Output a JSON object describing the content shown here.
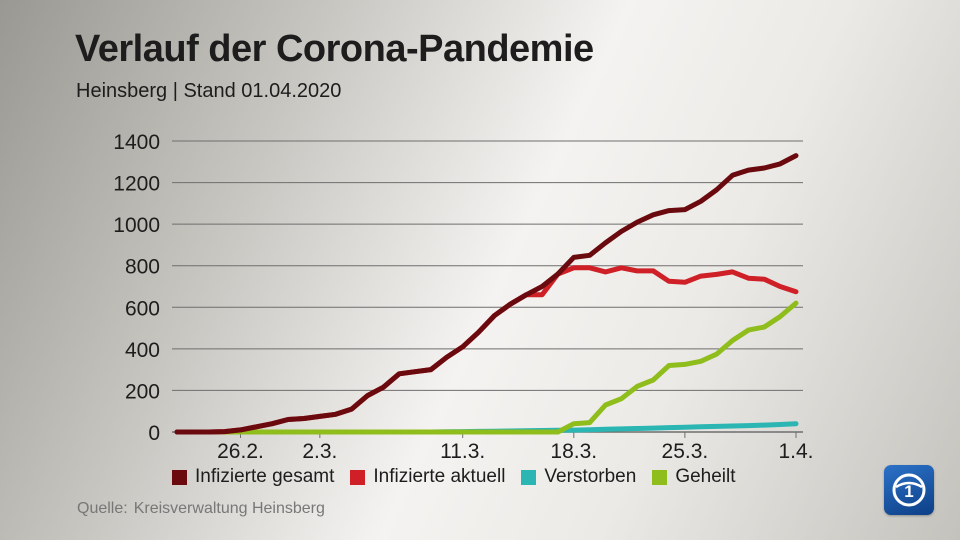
{
  "title": "Verlauf der Corona-Pandemie",
  "subtitle": "Heinsberg | Stand 01.04.2020",
  "source": {
    "label": "Quelle:",
    "text": "Kreisverwaltung Heinsberg"
  },
  "logo": {
    "icon": "ard-tagesschau-logo-icon",
    "symbol": "1"
  },
  "colors": {
    "grid": "#6e6e6e",
    "text": "#1d1d1d"
  },
  "chart_data": {
    "type": "line",
    "title": "Verlauf der Corona-Pandemie",
    "xlabel": "",
    "ylabel": "",
    "ylim": [
      0,
      1400
    ],
    "yticks": [
      0,
      200,
      400,
      600,
      800,
      1000,
      1200,
      1400
    ],
    "grid": true,
    "legend_position": "bottom",
    "x": [
      "22.2.",
      "23.2.",
      "24.2.",
      "25.2.",
      "26.2.",
      "27.2.",
      "28.2.",
      "29.2.",
      "1.3.",
      "2.3.",
      "3.3.",
      "4.3.",
      "5.3.",
      "6.3.",
      "7.3.",
      "8.3.",
      "9.3.",
      "10.3.",
      "11.3.",
      "12.3.",
      "13.3.",
      "14.3.",
      "15.3.",
      "16.3.",
      "17.3.",
      "18.3.",
      "19.3.",
      "20.3.",
      "21.3.",
      "22.3.",
      "23.3.",
      "24.3.",
      "25.3.",
      "26.3.",
      "27.3.",
      "28.3.",
      "29.3.",
      "30.3.",
      "31.3.",
      "1.4."
    ],
    "xticks": [
      "26.2.",
      "2.3.",
      "11.3.",
      "18.3.",
      "25.3.",
      "1.4."
    ],
    "series": [
      {
        "name": "Infizierte gesamt",
        "color": "#6b0a0e",
        "values": [
          0,
          0,
          0,
          2,
          10,
          25,
          40,
          60,
          65,
          75,
          85,
          110,
          175,
          215,
          280,
          290,
          300,
          360,
          410,
          480,
          560,
          615,
          660,
          700,
          760,
          840,
          850,
          910,
          965,
          1010,
          1045,
          1065,
          1070,
          1110,
          1165,
          1235,
          1260,
          1270,
          1290,
          1330
        ]
      },
      {
        "name": "Infizierte aktuell",
        "color": "#cf2027",
        "values": [
          0,
          0,
          0,
          2,
          10,
          25,
          40,
          60,
          65,
          75,
          85,
          110,
          175,
          215,
          280,
          290,
          300,
          360,
          410,
          480,
          560,
          615,
          660,
          660,
          760,
          790,
          790,
          770,
          790,
          775,
          775,
          725,
          720,
          750,
          758,
          770,
          740,
          735,
          700,
          675
        ]
      },
      {
        "name": "Verstorben",
        "color": "#2bb5b3",
        "values": [
          0,
          0,
          0,
          0,
          0,
          0,
          0,
          0,
          0,
          0,
          0,
          0,
          0,
          0,
          0,
          0,
          0,
          1,
          2,
          3,
          4,
          5,
          6,
          7,
          8,
          9,
          11,
          13,
          15,
          17,
          19,
          21,
          23,
          25,
          27,
          29,
          31,
          33,
          36,
          40
        ]
      },
      {
        "name": "Geheilt",
        "color": "#8fbd1c",
        "values": [
          0,
          0,
          0,
          0,
          0,
          0,
          0,
          0,
          0,
          0,
          0,
          0,
          0,
          0,
          0,
          0,
          0,
          0,
          0,
          0,
          0,
          0,
          0,
          0,
          0,
          40,
          45,
          130,
          160,
          220,
          250,
          320,
          325,
          340,
          375,
          440,
          490,
          505,
          555,
          620
        ]
      }
    ]
  }
}
